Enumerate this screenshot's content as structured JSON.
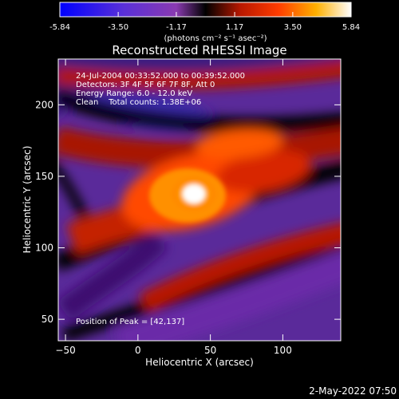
{
  "colorbar": {
    "ticks": [
      "-5.84",
      "-3.50",
      "-1.17",
      "1.17",
      "3.50",
      "5.84"
    ],
    "tick_values": [
      -5.84,
      -3.5,
      -1.17,
      1.17,
      3.5,
      5.84
    ],
    "label": "(photons cm⁻² s⁻¹ asec⁻²)",
    "range": [
      -5.84,
      5.84
    ]
  },
  "chart_data": {
    "type": "heatmap",
    "title": "Reconstructed RHESSI Image",
    "xlabel": "Heliocentric X (arcsec)",
    "ylabel": "Heliocentric Y (arcsec)",
    "xlim": [
      -55,
      140
    ],
    "ylim": [
      35,
      232
    ],
    "xticks": [
      -50,
      0,
      50,
      100
    ],
    "xtick_labels": [
      "−50",
      "0",
      "50",
      "100"
    ],
    "yticks": [
      50,
      100,
      150,
      200
    ],
    "ytick_labels": [
      "50",
      "100",
      "150",
      "200"
    ],
    "peak": {
      "x": 42,
      "y": 137
    },
    "annotations": {
      "time": "24-Jul-2004 00:33:52.000 to 00:39:52.000",
      "detectors": "Detectors: 3F 4F 5F 6F 7F 8F, Att 0",
      "energy": "Energy Range: 6.0 - 12.0 keV",
      "clean": "Clean    Total counts: 1.38E+06",
      "peak_label": "Position of Peak = [42,137]"
    },
    "colors": {
      "palette": [
        "#0000ff",
        "#4c32d6",
        "#7a3bb8",
        "#000000",
        "#c81e00",
        "#ff5a00",
        "#ffcc00",
        "#ffffff"
      ]
    }
  },
  "footer": {
    "timestamp": "2-May-2022 07:50"
  }
}
